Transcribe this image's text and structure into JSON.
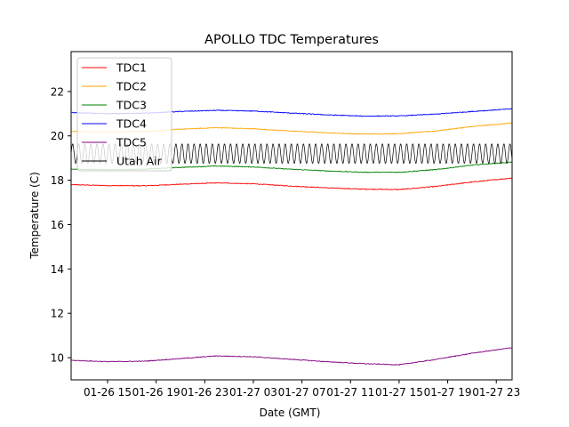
{
  "chart_data": {
    "type": "line",
    "title": "APOLLO TDC Temperatures",
    "xlabel": "Date (GMT)",
    "ylabel": "Temperature (C)",
    "x_unit": "hours since 01-26 12:00 GMT",
    "xlim": [
      0,
      36.3
    ],
    "ylim": [
      9.0,
      23.8
    ],
    "grid": false,
    "legend_position": "upper-left",
    "x_ticks": [
      {
        "value": 3,
        "label": "01-26 15"
      },
      {
        "value": 7,
        "label": "01-26 19"
      },
      {
        "value": 11,
        "label": "01-26 23"
      },
      {
        "value": 15,
        "label": "01-27 03"
      },
      {
        "value": 19,
        "label": "01-27 07"
      },
      {
        "value": 23,
        "label": "01-27 11"
      },
      {
        "value": 27,
        "label": "01-27 15"
      },
      {
        "value": 31,
        "label": "01-27 19"
      },
      {
        "value": 35,
        "label": "01-27 23"
      }
    ],
    "y_ticks": [
      10,
      12,
      14,
      16,
      18,
      20,
      22
    ],
    "x": [
      0,
      3,
      6,
      9,
      12,
      15,
      18,
      21,
      24,
      27,
      30,
      33,
      36.3
    ],
    "series": [
      {
        "name": "TDC1",
        "color": "#ff0000",
        "values": [
          17.8,
          17.76,
          17.75,
          17.82,
          17.88,
          17.84,
          17.74,
          17.66,
          17.6,
          17.58,
          17.72,
          17.92,
          18.1
        ]
      },
      {
        "name": "TDC2",
        "color": "#ffa500",
        "values": [
          20.2,
          20.18,
          20.2,
          20.3,
          20.37,
          20.32,
          20.22,
          20.14,
          20.08,
          20.1,
          20.22,
          20.42,
          20.58
        ]
      },
      {
        "name": "TDC3",
        "color": "#008000",
        "values": [
          18.5,
          18.48,
          18.5,
          18.58,
          18.64,
          18.6,
          18.5,
          18.42,
          18.36,
          18.36,
          18.48,
          18.68,
          18.82
        ]
      },
      {
        "name": "TDC4",
        "color": "#0000ff",
        "values": [
          21.05,
          21.0,
          21.02,
          21.1,
          21.15,
          21.12,
          21.03,
          20.95,
          20.89,
          20.9,
          20.98,
          21.1,
          21.22
        ]
      },
      {
        "name": "TDC5",
        "color": "#800080",
        "values": [
          9.88,
          9.82,
          9.84,
          9.96,
          10.08,
          10.04,
          9.93,
          9.82,
          9.73,
          9.68,
          9.92,
          10.2,
          10.45
        ]
      },
      {
        "name": "Utah Air",
        "color": "#000000",
        "oscillation_amplitude": 0.45,
        "oscillation_period_hours": 0.5,
        "values": [
          19.2,
          19.2,
          19.2,
          19.2,
          19.2,
          19.2,
          19.2,
          19.2,
          19.2,
          19.2,
          19.2,
          19.2,
          19.2
        ]
      }
    ]
  }
}
